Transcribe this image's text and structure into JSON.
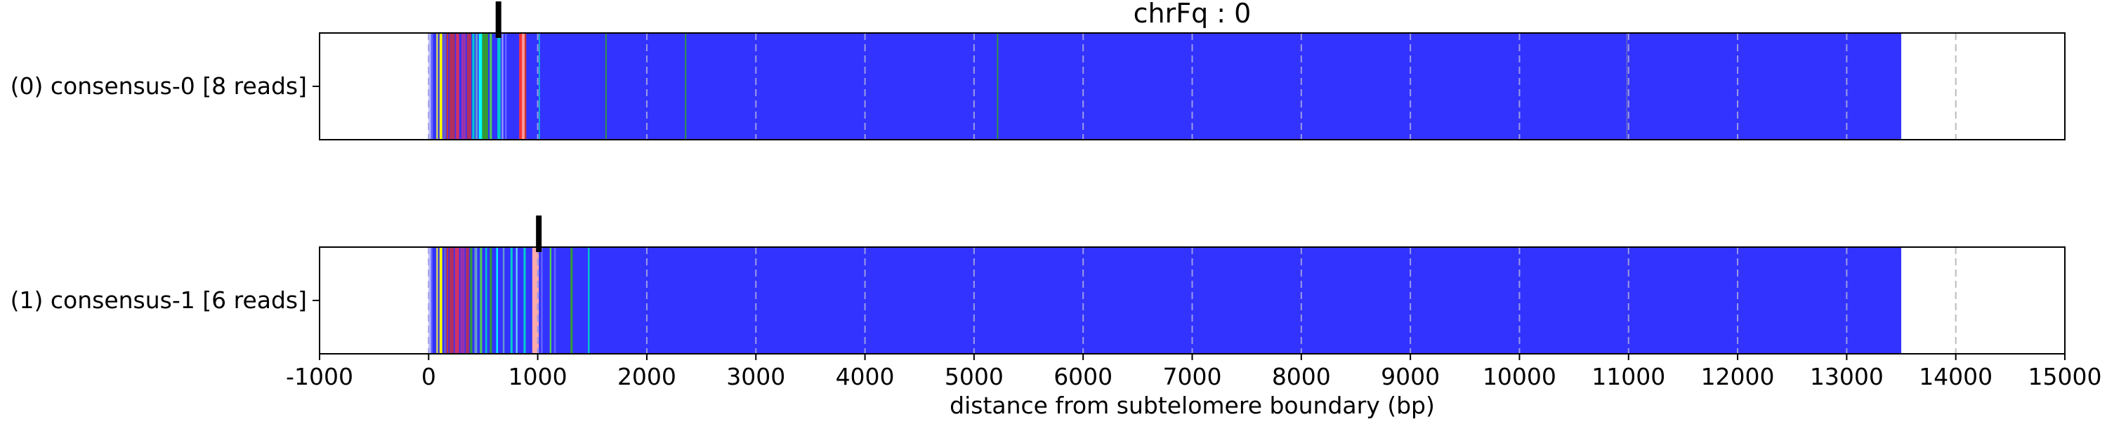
{
  "chart_data": {
    "type": "bar",
    "title": "chrFq : 0",
    "xlabel": "distance from subtelomere boundary (bp)",
    "xlim": [
      -1000,
      15000
    ],
    "xticks": [
      -1000,
      0,
      1000,
      2000,
      3000,
      4000,
      5000,
      6000,
      7000,
      8000,
      9000,
      10000,
      11000,
      12000,
      13000,
      14000,
      15000
    ],
    "grid": "vertical dashed gray lines at major ticks",
    "background_color": "#3333ff",
    "tracks": [
      {
        "label": "(0) consensus-0 [8 reads]",
        "marker_x": 640,
        "fill_start": 0,
        "fill_end": 13500,
        "bands": [
          {
            "x": 0,
            "w": 20,
            "color": "#bfbfff"
          },
          {
            "x": 20,
            "w": 20,
            "color": "#6666ff"
          },
          {
            "x": 70,
            "w": 15,
            "color": "#dddd55"
          },
          {
            "x": 100,
            "w": 25,
            "color": "#ffff00"
          },
          {
            "x": 130,
            "w": 30,
            "color": "#6a5acd"
          },
          {
            "x": 165,
            "w": 15,
            "color": "#cc3333"
          },
          {
            "x": 190,
            "w": 50,
            "color": "#b03060"
          },
          {
            "x": 250,
            "w": 30,
            "color": "#cc3366"
          },
          {
            "x": 300,
            "w": 40,
            "color": "#9933aa"
          },
          {
            "x": 350,
            "w": 40,
            "color": "#b03060"
          },
          {
            "x": 400,
            "w": 20,
            "color": "#00cccc"
          },
          {
            "x": 430,
            "w": 20,
            "color": "#6699cc"
          },
          {
            "x": 460,
            "w": 30,
            "color": "#00ffff"
          },
          {
            "x": 490,
            "w": 55,
            "color": "#339933"
          },
          {
            "x": 560,
            "w": 20,
            "color": "#55cc55"
          },
          {
            "x": 630,
            "w": 30,
            "color": "#00cccc"
          },
          {
            "x": 670,
            "w": 15,
            "color": "#9999ff"
          },
          {
            "x": 700,
            "w": 15,
            "color": "#6666ff"
          },
          {
            "x": 830,
            "w": 25,
            "color": "#ff3333"
          },
          {
            "x": 855,
            "w": 25,
            "color": "#ff9999"
          },
          {
            "x": 880,
            "w": 15,
            "color": "#cc3333"
          },
          {
            "x": 1010,
            "w": 10,
            "color": "#00cccc"
          },
          {
            "x": 1620,
            "w": 12,
            "color": "#339933"
          },
          {
            "x": 2350,
            "w": 12,
            "color": "#339933"
          },
          {
            "x": 5210,
            "w": 12,
            "color": "#339933"
          },
          {
            "x": 10980,
            "w": 10,
            "color": "#6666cc"
          }
        ]
      },
      {
        "label": "(1) consensus-1 [6 reads]",
        "marker_x": 1010,
        "fill_start": 0,
        "fill_end": 13500,
        "bands": [
          {
            "x": 0,
            "w": 20,
            "color": "#bfbfff"
          },
          {
            "x": 20,
            "w": 15,
            "color": "#6666ff"
          },
          {
            "x": 70,
            "w": 15,
            "color": "#dddd55"
          },
          {
            "x": 100,
            "w": 25,
            "color": "#ffff00"
          },
          {
            "x": 140,
            "w": 20,
            "color": "#6a5acd"
          },
          {
            "x": 165,
            "w": 15,
            "color": "#cc3333"
          },
          {
            "x": 190,
            "w": 40,
            "color": "#b03060"
          },
          {
            "x": 240,
            "w": 40,
            "color": "#cc3366"
          },
          {
            "x": 290,
            "w": 40,
            "color": "#9933aa"
          },
          {
            "x": 340,
            "w": 30,
            "color": "#b03060"
          },
          {
            "x": 380,
            "w": 20,
            "color": "#339933"
          },
          {
            "x": 420,
            "w": 25,
            "color": "#6699cc"
          },
          {
            "x": 470,
            "w": 20,
            "color": "#55cc55"
          },
          {
            "x": 520,
            "w": 15,
            "color": "#00cccc"
          },
          {
            "x": 560,
            "w": 20,
            "color": "#339933"
          },
          {
            "x": 620,
            "w": 15,
            "color": "#00ffff"
          },
          {
            "x": 680,
            "w": 15,
            "color": "#6699cc"
          },
          {
            "x": 750,
            "w": 20,
            "color": "#00cccc"
          },
          {
            "x": 800,
            "w": 15,
            "color": "#66ccff"
          },
          {
            "x": 870,
            "w": 20,
            "color": "#00cccc"
          },
          {
            "x": 950,
            "w": 60,
            "color": "#ffaaaa"
          },
          {
            "x": 1030,
            "w": 15,
            "color": "#6666ff"
          },
          {
            "x": 1110,
            "w": 15,
            "color": "#55cc55"
          },
          {
            "x": 1150,
            "w": 15,
            "color": "#6666ff"
          },
          {
            "x": 1300,
            "w": 20,
            "color": "#339933"
          },
          {
            "x": 1460,
            "w": 15,
            "color": "#00cccc"
          }
        ]
      }
    ]
  }
}
